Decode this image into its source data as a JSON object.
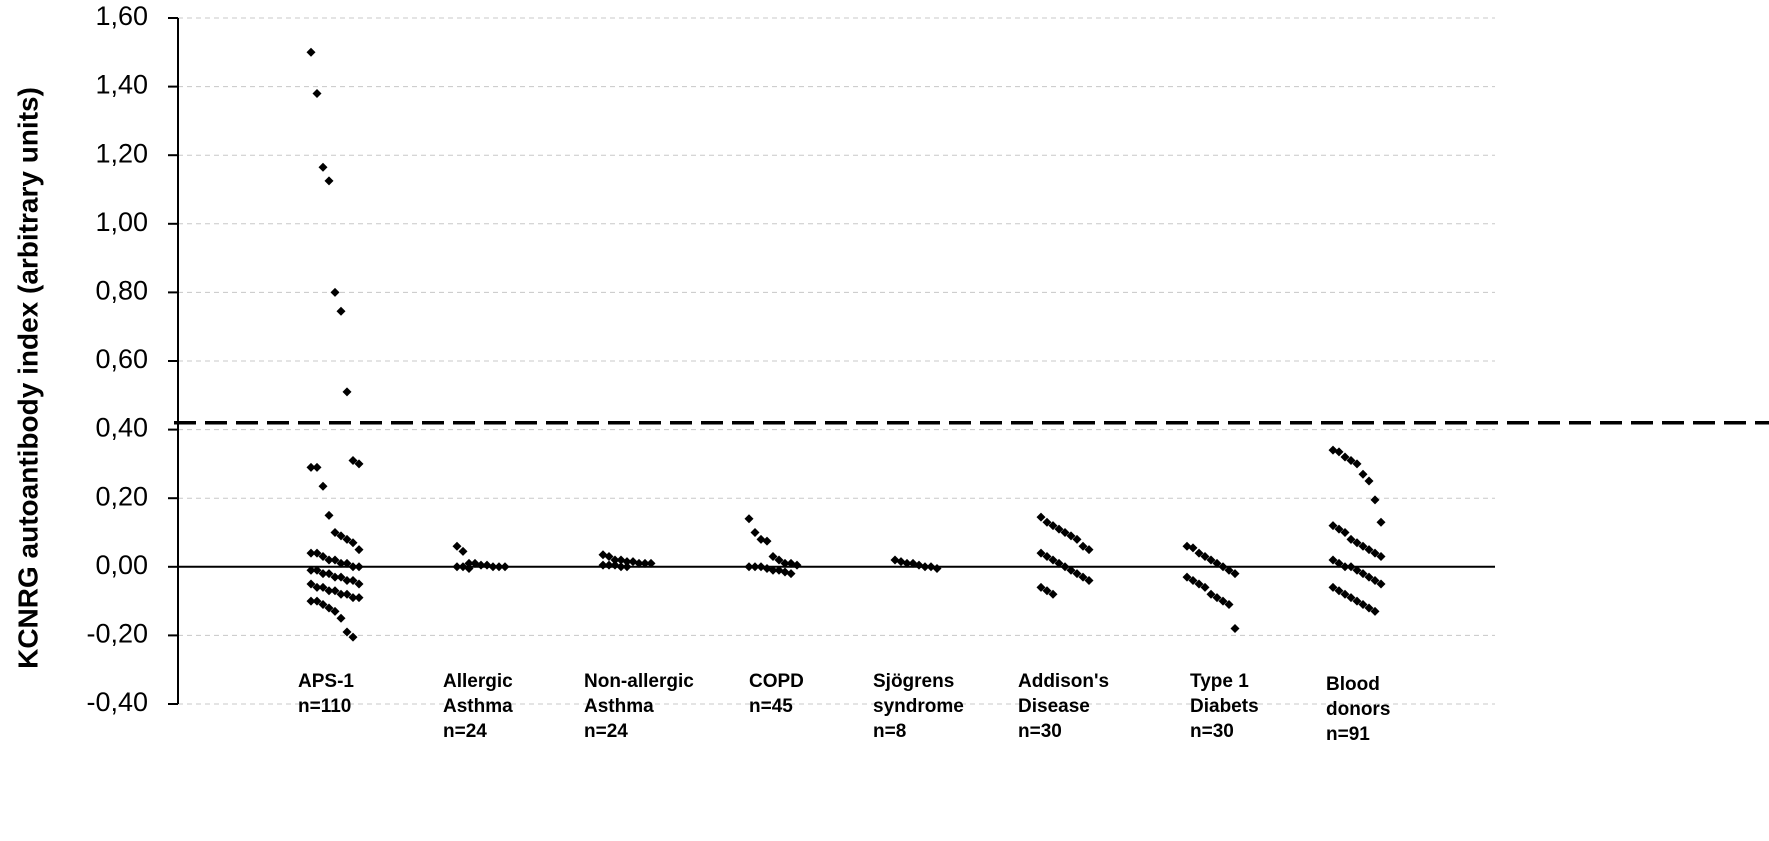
{
  "chart_data": {
    "type": "strip",
    "y_label": "KCNRG autoantibody index (arbitrary units)",
    "ylim": [
      -0.4,
      1.6
    ],
    "yticks": [
      {
        "value": -0.4,
        "label": "-0,40"
      },
      {
        "value": -0.2,
        "label": "-0,20"
      },
      {
        "value": 0,
        "label": "0,00"
      },
      {
        "value": 0.2,
        "label": "0,20"
      },
      {
        "value": 0.4,
        "label": "0,40"
      },
      {
        "value": 0.6,
        "label": "0,60"
      },
      {
        "value": 0.8,
        "label": "0,80"
      },
      {
        "value": 1.0,
        "label": "1,00"
      },
      {
        "value": 1.2,
        "label": "1,20"
      },
      {
        "value": 1.4,
        "label": "1,40"
      },
      {
        "value": 1.6,
        "label": "1,60"
      }
    ],
    "grid": true,
    "color": "#000000",
    "threshold": 0.42,
    "groups": [
      {
        "label": [
          "APS-1",
          "n=110"
        ],
        "values": [
          1.5,
          1.38,
          1.165,
          1.125,
          0.8,
          0.745,
          0.51,
          0.31,
          0.3,
          0.29,
          0.29,
          0.235,
          0.15,
          0.1,
          0.09,
          0.08,
          0.07,
          0.05,
          0.04,
          0.04,
          0.03,
          0.02,
          0.02,
          0.01,
          0.01,
          0.0,
          0.0,
          -0.01,
          -0.01,
          -0.02,
          -0.02,
          -0.03,
          -0.03,
          -0.04,
          -0.04,
          -0.05,
          -0.05,
          -0.06,
          -0.06,
          -0.07,
          -0.07,
          -0.08,
          -0.08,
          -0.09,
          -0.09,
          -0.1,
          -0.1,
          -0.11,
          -0.12,
          -0.13,
          -0.15,
          -0.19,
          -0.205
        ]
      },
      {
        "label": [
          "Allergic",
          "Asthma",
          "n=24"
        ],
        "values": [
          0.06,
          0.045,
          0.01,
          0.01,
          0.005,
          0.005,
          0.0,
          0.0,
          0.0,
          0.0,
          0.0,
          -0.005
        ]
      },
      {
        "label": [
          "Non-allergic",
          "Asthma",
          "n=24"
        ],
        "values": [
          0.035,
          0.03,
          0.02,
          0.02,
          0.015,
          0.015,
          0.01,
          0.01,
          0.01,
          0.005,
          0.005,
          0.005,
          0.0,
          0.0
        ]
      },
      {
        "label": [
          "COPD",
          "n=45"
        ],
        "values": [
          0.14,
          0.1,
          0.08,
          0.075,
          0.03,
          0.02,
          0.01,
          0.01,
          0.005,
          0.0,
          0.0,
          0.0,
          -0.005,
          -0.01,
          -0.01,
          -0.015,
          -0.02
        ]
      },
      {
        "label": [
          "Sjögrens",
          "syndrome",
          "n=8"
        ],
        "values": [
          0.02,
          0.015,
          0.01,
          0.01,
          0.005,
          0.0,
          0.0,
          -0.005
        ]
      },
      {
        "label": [
          "Addison's",
          "Disease",
          " n=30"
        ],
        "values": [
          0.145,
          0.13,
          0.12,
          0.11,
          0.1,
          0.09,
          0.08,
          0.06,
          0.05,
          0.04,
          0.03,
          0.02,
          0.01,
          0.0,
          -0.01,
          -0.02,
          -0.03,
          -0.04,
          -0.06,
          -0.07,
          -0.08
        ]
      },
      {
        "label": [
          "Type 1",
          "Diabets",
          "n=30"
        ],
        "values": [
          0.06,
          0.055,
          0.04,
          0.03,
          0.02,
          0.01,
          0.0,
          -0.01,
          -0.02,
          -0.03,
          -0.04,
          -0.05,
          -0.06,
          -0.08,
          -0.09,
          -0.1,
          -0.11,
          -0.18
        ]
      },
      {
        "label": [
          "Blood",
          "donors",
          "n=91"
        ],
        "values": [
          0.34,
          0.335,
          0.32,
          0.31,
          0.3,
          0.27,
          0.25,
          0.195,
          0.13,
          0.12,
          0.11,
          0.1,
          0.08,
          0.07,
          0.06,
          0.05,
          0.04,
          0.03,
          0.02,
          0.01,
          0.0,
          0.0,
          -0.01,
          -0.02,
          -0.03,
          -0.04,
          -0.05,
          -0.06,
          -0.07,
          -0.08,
          -0.09,
          -0.1,
          -0.11,
          -0.12,
          -0.13
        ]
      }
    ]
  }
}
